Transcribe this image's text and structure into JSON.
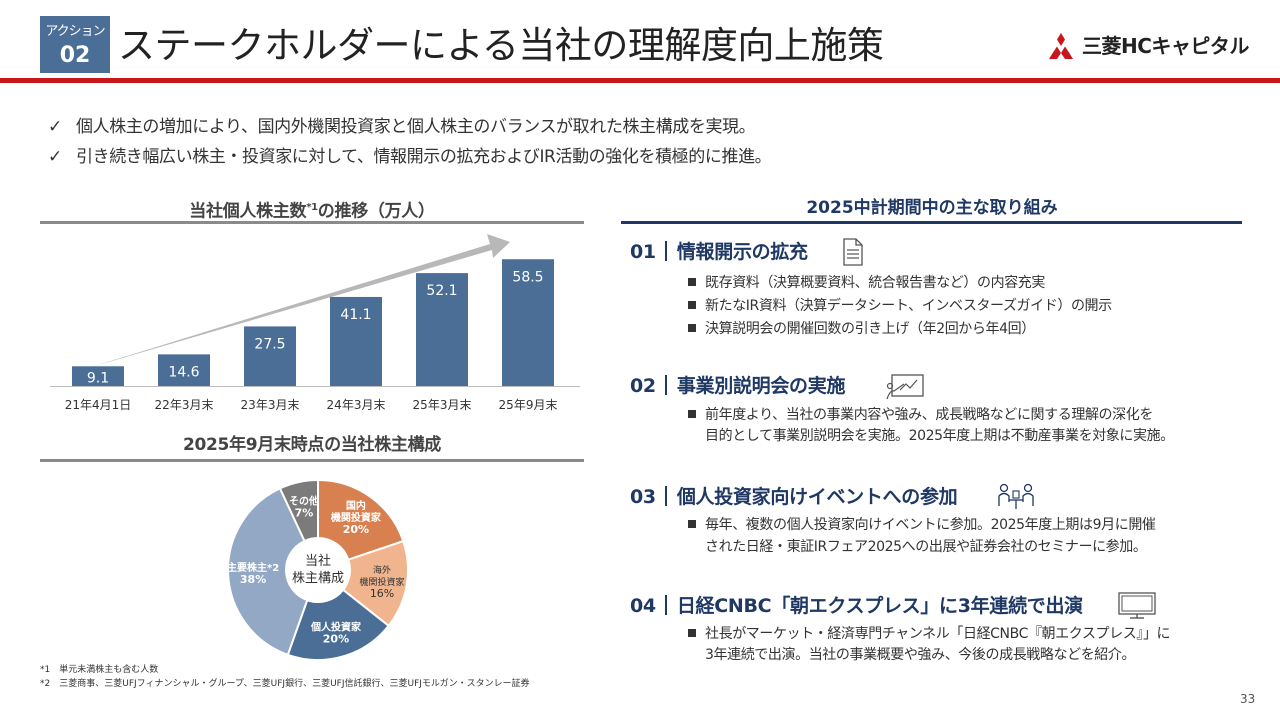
{
  "header": {
    "badge_label": "アクション",
    "badge_number": "02",
    "title": "ステークホルダーによる当社の理解度向上施策",
    "logo_text": "三菱HCキャピタル"
  },
  "bullets": [
    "個人株主の増加により、国内外機関投資家と個人株主のバランスが取れた株主構成を実現。",
    "引き続き幅広い株主・投資家に対して、情報開示の拡充およびIR活動の強化を積極的に推進。"
  ],
  "chart_section": {
    "title": "当社個人株主数",
    "title_sup": "*1",
    "title_suffix": "の推移（万人）"
  },
  "pie_section": {
    "title": "2025年9月末時点の当社株主構成",
    "center_label_1": "当社",
    "center_label_2": "株主構成"
  },
  "chart_data": [
    {
      "type": "bar",
      "title": "当社個人株主数*1の推移（万人）",
      "categories": [
        "21年4月1日",
        "22年3月末",
        "23年3月末",
        "24年3月末",
        "25年3月末",
        "25年9月末"
      ],
      "values": [
        9.1,
        14.6,
        27.5,
        41.1,
        52.1,
        58.5
      ],
      "value_labels": [
        "9.1",
        "14.6",
        "27.5",
        "41.1",
        "52.1",
        "58.5"
      ],
      "ylim": [
        0,
        60
      ],
      "bar_color": "#4a6e96",
      "trend_arrow": true,
      "grid": false
    },
    {
      "type": "pie",
      "title": "2025年9月末時点の当社株主構成",
      "donut": true,
      "slices": [
        {
          "name_lines": [
            "国内",
            "機関投資家"
          ],
          "value": 20,
          "label": "20%",
          "color": "#d98050"
        },
        {
          "name_lines": [
            "海外",
            "機関投資家"
          ],
          "value": 16,
          "label": "16%",
          "color": "#f0b48e"
        },
        {
          "name_lines": [
            "個人投資家"
          ],
          "value": 20,
          "label": "20%",
          "color": "#4a6e96"
        },
        {
          "name_lines": [
            "主要株主*2"
          ],
          "value": 38,
          "label": "38%",
          "color": "#93a8c5"
        },
        {
          "name_lines": [
            "その他"
          ],
          "value": 7,
          "label": "7%",
          "color": "#7b7b7b"
        }
      ]
    }
  ],
  "footnotes": [
    "*1　単元未満株主も含む人数",
    "*2　三菱商事、三菱UFJフィナンシャル・グループ、三菱UFJ銀行、三菱UFJ信託銀行、三菱UFJモルガン・スタンレー証券"
  ],
  "initiatives": {
    "title": "2025中計期間中の主な取り組み",
    "items": [
      {
        "number": "01",
        "title": "情報開示の拡充",
        "icon": "document-icon",
        "lines": [
          {
            "text": "既存資料（決算概要資料、統合報告書など）の内容充実",
            "bullet": true
          },
          {
            "text": "新たなIR資料（決算データシート、インベスターズガイド）の開示",
            "bullet": true
          },
          {
            "text": "決算説明会の開催回数の引き上げ（年2回から年4回）",
            "bullet": true
          }
        ]
      },
      {
        "number": "02",
        "title": "事業別説明会の実施",
        "icon": "presentation-board-icon",
        "lines": [
          {
            "text": "前年度より、当社の事業内容や強み、成長戦略などに関する理解の深化を",
            "bullet": true
          },
          {
            "text": "目的として事業別説明会を実施。2025年度上期は不動産事業を対象に実施。",
            "bullet": false
          }
        ]
      },
      {
        "number": "03",
        "title": "個人投資家向けイベントへの参加",
        "icon": "people-meeting-icon",
        "lines": [
          {
            "text": "毎年、複数の個人投資家向けイベントに参加。2025年度上期は9月に開催",
            "bullet": true
          },
          {
            "text": "された日経・東証IRフェア2025への出展や証券会社のセミナーに参加。",
            "bullet": false
          }
        ]
      },
      {
        "number": "04",
        "title": "日経CNBC「朝エクスプレス」に3年連続で出演",
        "icon": "monitor-icon",
        "lines": [
          {
            "text": "社長がマーケット・経済専門チャンネル「日経CNBC『朝エクスプレス』」に",
            "bullet": true
          },
          {
            "text": "3年連続で出演。当社の事業概要や強み、今後の成長戦略などを紹介。",
            "bullet": false
          }
        ]
      }
    ]
  },
  "page_number": "33",
  "colors": {
    "brand_red": "#c8161d",
    "navy": "#1f3864",
    "bar_blue": "#4a6e96",
    "arrow_grey": "#b8b8b8"
  }
}
